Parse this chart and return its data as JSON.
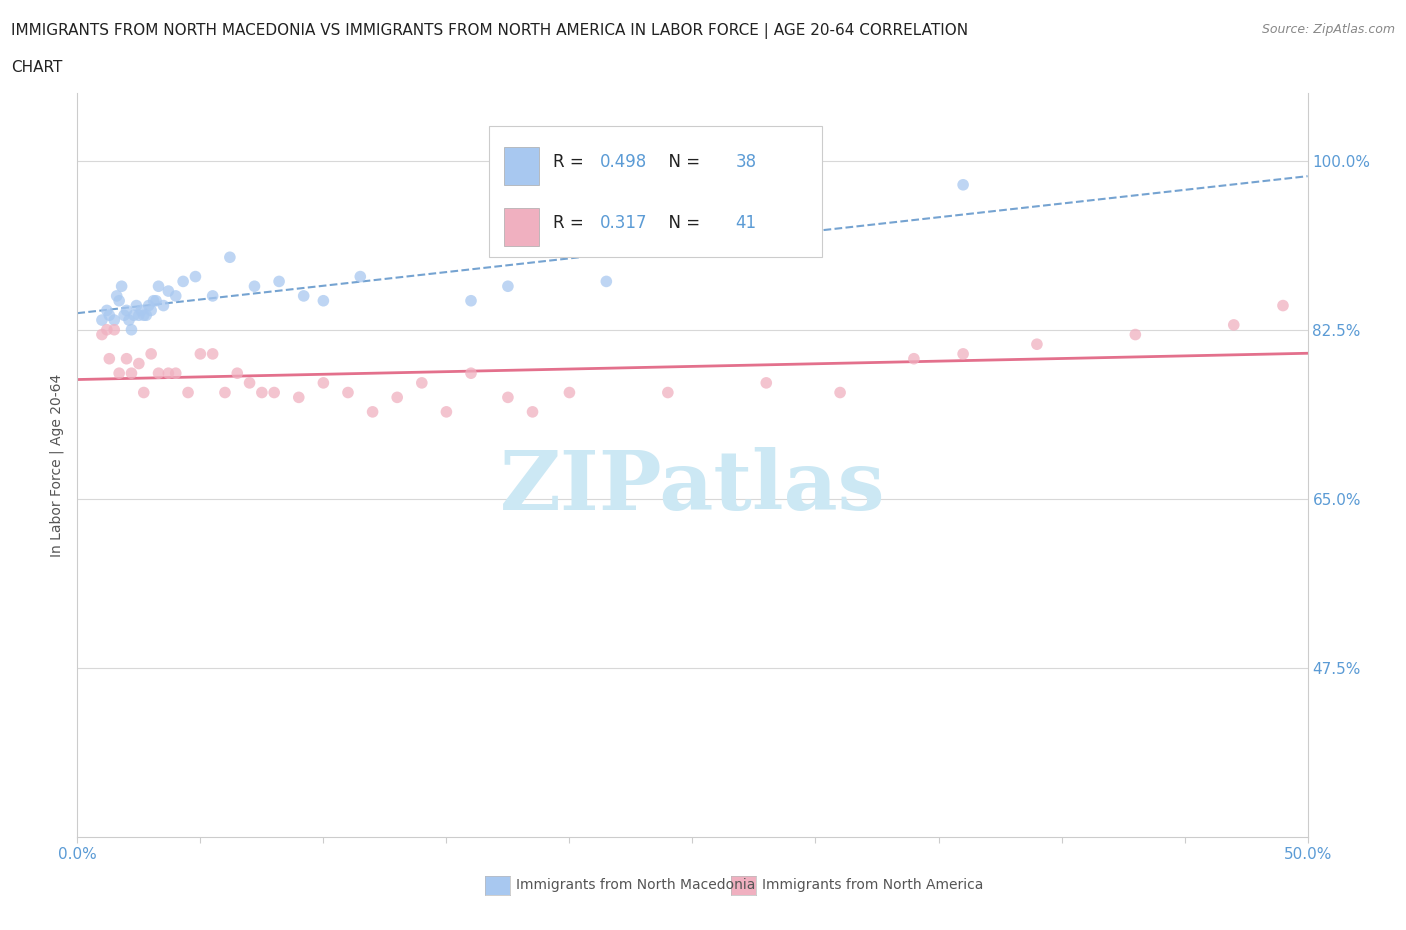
{
  "title_line1": "IMMIGRANTS FROM NORTH MACEDONIA VS IMMIGRANTS FROM NORTH AMERICA IN LABOR FORCE | AGE 20-64 CORRELATION",
  "title_line2": "CHART",
  "source_text": "Source: ZipAtlas.com",
  "ylabel": "In Labor Force | Age 20-64",
  "xlim": [
    0.0,
    0.5
  ],
  "ylim": [
    0.3,
    1.07
  ],
  "ytick_labels": [
    "47.5%",
    "65.0%",
    "82.5%",
    "100.0%"
  ],
  "ytick_values": [
    0.475,
    0.65,
    0.825,
    1.0
  ],
  "xtick_positions": [
    0.0,
    0.05,
    0.1,
    0.15,
    0.2,
    0.25,
    0.3,
    0.35,
    0.4,
    0.45,
    0.5
  ],
  "r_blue": 0.498,
  "n_blue": 38,
  "r_pink": 0.317,
  "n_pink": 41,
  "color_blue": "#a8c8f0",
  "color_pink": "#f0b0c0",
  "trendline_blue_color": "#6699cc",
  "trendline_pink_color": "#e06080",
  "label_blue": "Immigrants from North Macedonia",
  "label_pink": "Immigrants from North America",
  "watermark_text": "ZIPatlas",
  "watermark_color": "#cce8f4",
  "grid_color": "#d8d8d8",
  "axis_color": "#cccccc",
  "tick_color": "#5b9bd5",
  "text_dark": "#222222",
  "source_color": "#888888",
  "blue_scatter_x": [
    0.01,
    0.012,
    0.013,
    0.015,
    0.016,
    0.017,
    0.018,
    0.019,
    0.02,
    0.021,
    0.022,
    0.023,
    0.024,
    0.025,
    0.026,
    0.027,
    0.028,
    0.029,
    0.03,
    0.031,
    0.032,
    0.033,
    0.035,
    0.037,
    0.04,
    0.043,
    0.048,
    0.055,
    0.062,
    0.072,
    0.082,
    0.092,
    0.1,
    0.115,
    0.16,
    0.175,
    0.215,
    0.36
  ],
  "blue_scatter_y": [
    0.835,
    0.845,
    0.84,
    0.835,
    0.86,
    0.855,
    0.87,
    0.84,
    0.845,
    0.835,
    0.825,
    0.84,
    0.85,
    0.84,
    0.845,
    0.84,
    0.84,
    0.85,
    0.845,
    0.855,
    0.855,
    0.87,
    0.85,
    0.865,
    0.86,
    0.875,
    0.88,
    0.86,
    0.9,
    0.87,
    0.875,
    0.86,
    0.855,
    0.88,
    0.855,
    0.87,
    0.875,
    0.975
  ],
  "pink_scatter_x": [
    0.01,
    0.012,
    0.013,
    0.015,
    0.017,
    0.02,
    0.022,
    0.025,
    0.027,
    0.03,
    0.033,
    0.037,
    0.04,
    0.045,
    0.05,
    0.055,
    0.06,
    0.065,
    0.07,
    0.075,
    0.08,
    0.09,
    0.1,
    0.11,
    0.12,
    0.13,
    0.14,
    0.15,
    0.16,
    0.175,
    0.185,
    0.2,
    0.24,
    0.28,
    0.31,
    0.34,
    0.36,
    0.39,
    0.43,
    0.47,
    0.49
  ],
  "pink_scatter_y": [
    0.82,
    0.825,
    0.795,
    0.825,
    0.78,
    0.795,
    0.78,
    0.79,
    0.76,
    0.8,
    0.78,
    0.78,
    0.78,
    0.76,
    0.8,
    0.8,
    0.76,
    0.78,
    0.77,
    0.76,
    0.76,
    0.755,
    0.77,
    0.76,
    0.74,
    0.755,
    0.77,
    0.74,
    0.78,
    0.755,
    0.74,
    0.76,
    0.76,
    0.77,
    0.76,
    0.795,
    0.8,
    0.81,
    0.82,
    0.83,
    0.85
  ]
}
